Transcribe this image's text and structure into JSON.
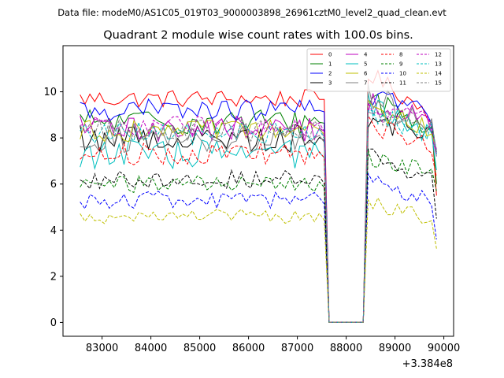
{
  "chart_data": {
    "type": "line",
    "suptitle": "Data file: modeM0/AS1C05_019T03_9000003898_26961cztM0_level2_quad_clean.evt",
    "title": "Quadrant 2 module wise count rates with 100.0s bins.",
    "xlabel": "",
    "ylabel": "",
    "x_offset_label": "+3.384e8",
    "xlim": [
      82200,
      90200
    ],
    "ylim": [
      -0.6,
      12.0
    ],
    "x_ticks": [
      83000,
      84000,
      85000,
      86000,
      87000,
      88000,
      89000,
      90000
    ],
    "x_tick_labels": [
      "83000",
      "84000",
      "85000",
      "86000",
      "87000",
      "88000",
      "89000",
      "90000"
    ],
    "y_ticks": [
      0,
      2,
      4,
      6,
      8,
      10
    ],
    "y_tick_labels": [
      "0",
      "2",
      "4",
      "6",
      "8",
      "10"
    ],
    "x_start": 82550,
    "x_step": 100,
    "gap": {
      "last_before": 87550,
      "zero_from": 87650,
      "zero_to": 88350,
      "first_after": 88450
    },
    "x_end": 89850,
    "legend_location": "upper right",
    "series": [
      {
        "name": "0",
        "color": "#ff0000",
        "dash": "solid",
        "base": 9.7,
        "post": 10.8,
        "end": 5.5,
        "noise": 0.25
      },
      {
        "name": "1",
        "color": "#008000",
        "dash": "solid",
        "base": 8.7,
        "post": 9.8,
        "end": 6.0,
        "noise": 0.35
      },
      {
        "name": "2",
        "color": "#0000ff",
        "dash": "solid",
        "base": 9.2,
        "post": 10.0,
        "end": 7.3,
        "noise": 0.3
      },
      {
        "name": "3",
        "color": "#000000",
        "dash": "solid",
        "base": 8.0,
        "post": 9.0,
        "end": 7.4,
        "noise": 0.4
      },
      {
        "name": "4",
        "color": "#bf00bf",
        "dash": "solid",
        "base": 8.4,
        "post": 9.6,
        "end": 7.2,
        "noise": 0.35
      },
      {
        "name": "5",
        "color": "#00bfbf",
        "dash": "solid",
        "base": 7.3,
        "post": 9.3,
        "end": 6.6,
        "noise": 0.4
      },
      {
        "name": "6",
        "color": "#bfbf00",
        "dash": "solid",
        "base": 8.3,
        "post": 9.2,
        "end": 7.5,
        "noise": 0.3
      },
      {
        "name": "7",
        "color": "#808080",
        "dash": "solid",
        "base": 8.0,
        "post": 9.8,
        "end": 7.2,
        "noise": 0.4
      },
      {
        "name": "8",
        "color": "#ff0000",
        "dash": "dashed",
        "base": 7.3,
        "post": 8.6,
        "end": 6.3,
        "noise": 0.3
      },
      {
        "name": "9",
        "color": "#008000",
        "dash": "dashed",
        "base": 6.0,
        "post": 7.2,
        "end": 5.7,
        "noise": 0.25
      },
      {
        "name": "10",
        "color": "#0000ff",
        "dash": "dashed",
        "base": 5.3,
        "post": 6.2,
        "end": 3.6,
        "noise": 0.25
      },
      {
        "name": "11",
        "color": "#000000",
        "dash": "dashed",
        "base": 6.2,
        "post": 7.3,
        "end": 4.5,
        "noise": 0.25
      },
      {
        "name": "12",
        "color": "#bf00bf",
        "dash": "dashed",
        "base": 8.5,
        "post": 9.3,
        "end": 7.5,
        "noise": 0.3
      },
      {
        "name": "13",
        "color": "#00bfbf",
        "dash": "dashed",
        "base": 8.2,
        "post": 9.0,
        "end": 7.3,
        "noise": 0.3
      },
      {
        "name": "14",
        "color": "#bfbf00",
        "dash": "dashed",
        "base": 4.6,
        "post": 5.2,
        "end": 3.2,
        "noise": 0.2
      },
      {
        "name": "15",
        "color": "#808080",
        "dash": "dashed",
        "base": 8.3,
        "post": 9.0,
        "end": 7.4,
        "noise": 0.3
      }
    ]
  }
}
